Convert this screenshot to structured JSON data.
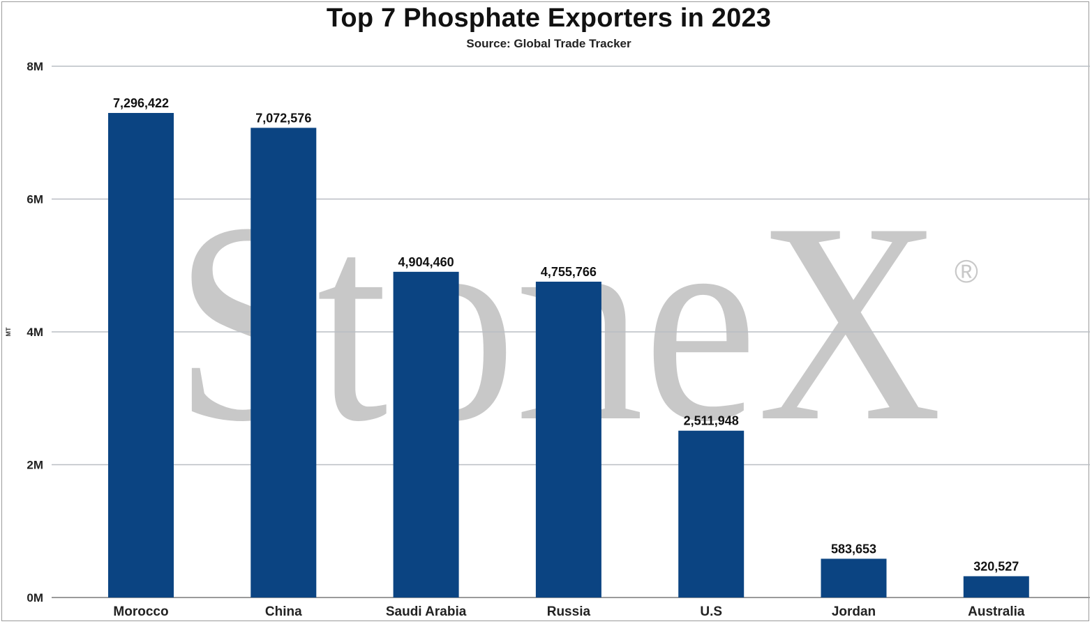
{
  "chart_data": {
    "type": "bar",
    "title": "Top 7 Phosphate Exporters in 2023",
    "subtitle": "Source: Global Trade Tracker",
    "ylabel": "MT",
    "xlabel": "",
    "categories": [
      "Morocco",
      "China",
      "Saudi Arabia",
      "Russia",
      "U.S",
      "Jordan",
      "Australia"
    ],
    "values": [
      7296422,
      7072576,
      4904460,
      4755766,
      2511948,
      583653,
      320527
    ],
    "value_labels": [
      "7,296,422",
      "7,072,576",
      "4,904,460",
      "4,755,766",
      "2,511,948",
      "583,653",
      "320,527"
    ],
    "ylim": [
      0,
      8000000
    ],
    "yticks": [
      0,
      2000000,
      4000000,
      6000000,
      8000000
    ],
    "ytick_labels": [
      "0M",
      "2M",
      "4M",
      "6M",
      "8M"
    ],
    "grid": true,
    "legend": "none",
    "bar_color": "#0b4482"
  },
  "watermark": {
    "text": "StoneX",
    "mark": "®",
    "color": "#c8c8c8"
  }
}
